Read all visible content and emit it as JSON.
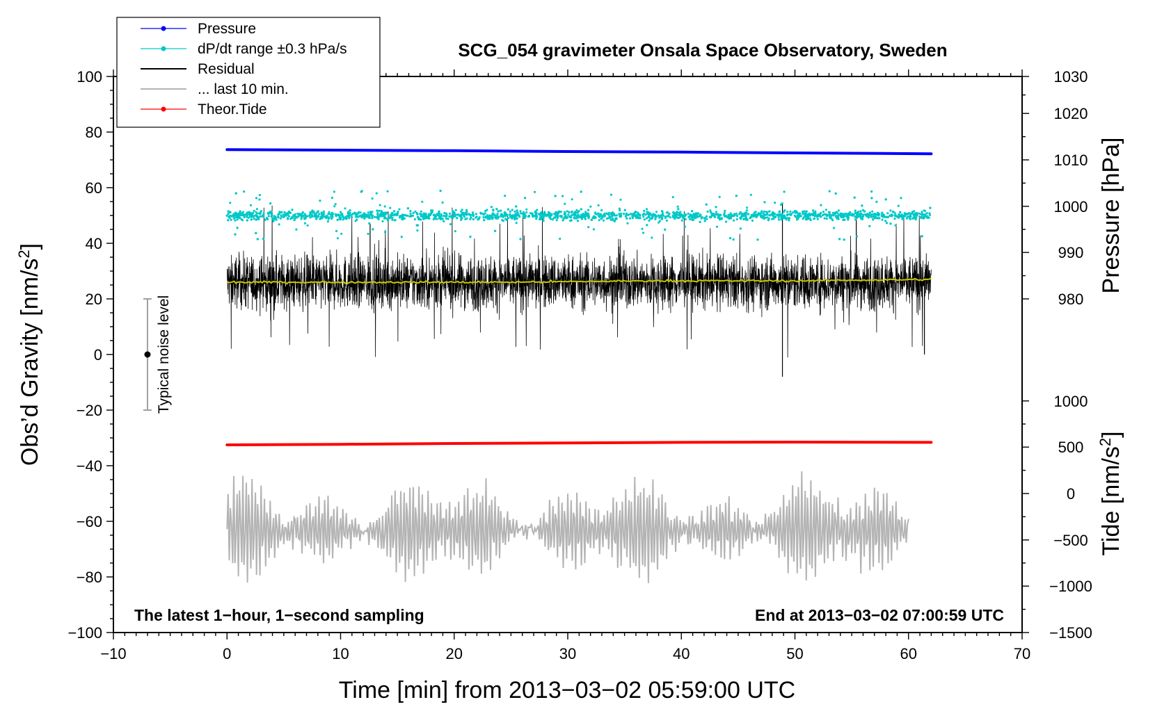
{
  "chart_data": {
    "type": "line",
    "title": "SCG_054 gravimeter Onsala Space Observatory, Sweden",
    "xlabel": "Time [min] from 2013−03−02 05:59:00 UTC",
    "ylabel_left": "Obs’d Gravity [nm/s²]",
    "ylabel_left_parts": {
      "prefix": "Obs’d Gravity [nm/s",
      "sup": "2",
      "suffix": "]"
    },
    "ylabel_right_pressure": "Pressure [hPa]",
    "ylabel_right_tide": "Tide [nm/s²]",
    "ylabel_right_tide_parts": {
      "prefix": "Tide [nm/s",
      "sup": "2",
      "suffix": "]"
    },
    "xlim": [
      -10,
      70
    ],
    "ylim_left": [
      -100,
      100
    ],
    "x_ticks": [
      -10,
      0,
      10,
      20,
      30,
      40,
      50,
      60,
      70
    ],
    "x_tick_labels": [
      "−10",
      "0",
      "10",
      "20",
      "30",
      "40",
      "50",
      "60",
      "70"
    ],
    "y_left_ticks": [
      -100,
      -80,
      -60,
      -40,
      -20,
      0,
      20,
      40,
      60,
      80,
      100
    ],
    "y_left_tick_labels": [
      "−100",
      "−80",
      "−60",
      "−40",
      "−20",
      "0",
      "20",
      "40",
      "60",
      "80",
      "100"
    ],
    "pressure_axis": {
      "ticks": [
        980,
        990,
        1000,
        1010,
        1020,
        1030
      ],
      "tick_labels": [
        "980",
        "990",
        "1000",
        "1010",
        "1020",
        "1030"
      ],
      "gravity_equivalent": [
        20,
        36.7,
        53.3,
        70,
        86.7,
        100
      ]
    },
    "tide_axis": {
      "ticks": [
        -1500,
        -1000,
        -500,
        0,
        500,
        1000
      ],
      "tick_labels": [
        "−1500",
        "−1000",
        "−500",
        "0",
        "500",
        "1000"
      ],
      "gravity_equivalent": [
        -100,
        -83.3,
        -66.7,
        -50,
        -33.3,
        -16.7
      ]
    },
    "legend": [
      {
        "label": "Pressure",
        "color": "#0000ff",
        "marker": true
      },
      {
        "label": "dP/dt range ±0.3 hPa/s",
        "color": "#00c8c8",
        "marker": true
      },
      {
        "label": "Residual",
        "color": "#000000",
        "marker": false
      },
      {
        "label": "... last 10 min.",
        "color": "#b4b4b4",
        "marker": false
      },
      {
        "label": "Theor.Tide",
        "color": "#ff0000",
        "marker": true
      }
    ],
    "series": [
      {
        "name": "Pressure",
        "color": "#0000ff",
        "x": [
          0,
          10,
          20,
          30,
          40,
          50,
          62
        ],
        "values": [
          73.7,
          73.5,
          73.3,
          73.0,
          72.8,
          72.5,
          72.2
        ]
      },
      {
        "name": "dP/dt range ±0.3 hPa/s",
        "color": "#00c8c8",
        "type": "scatter",
        "x_range": [
          0,
          62
        ],
        "center": 50,
        "spread": 4,
        "max_spread": 10
      },
      {
        "name": "Residual",
        "color": "#000000",
        "x_range": [
          0,
          62
        ],
        "center": 26,
        "spread": 12,
        "min": -8,
        "max": 54
      },
      {
        "name": "Residual smoothed",
        "color": "#c8c800",
        "x_range": [
          0,
          62
        ],
        "values": [
          26,
          26,
          26,
          26.5,
          26.5,
          27
        ]
      },
      {
        "name": "Theor.Tide",
        "color": "#ff0000",
        "x": [
          0,
          10,
          20,
          30,
          40,
          50,
          62
        ],
        "values": [
          -32.5,
          -32.3,
          -32.0,
          -31.8,
          -31.6,
          -31.5,
          -31.6
        ]
      },
      {
        "name": "... last 10 min.",
        "color": "#b4b4b4",
        "x_range": [
          0,
          60
        ],
        "center": -63,
        "min": -88,
        "max": -37
      }
    ],
    "noise_bar": {
      "label": "Typical noise level",
      "x": -7,
      "center": 0,
      "low": -20,
      "high": 20
    },
    "annotations": {
      "bottom_left": "The latest 1−hour, 1−second sampling",
      "bottom_right": "End at 2013−03−02 07:00:59 UTC"
    }
  }
}
